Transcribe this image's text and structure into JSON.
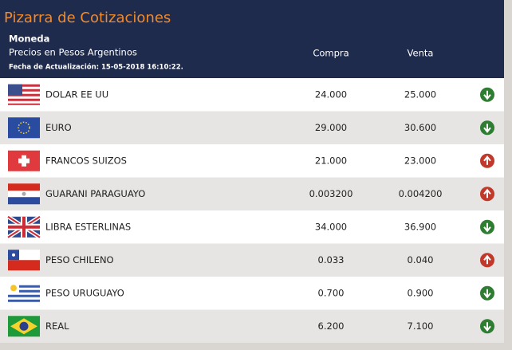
{
  "header": {
    "title": "Pizarra de Cotizaciones",
    "column_currency": "Moneda",
    "subtitle": "Precios en Pesos Argentinos",
    "updated": "Fecha de Actualización: 15-05-2018 16:10:22.",
    "column_buy": "Compra",
    "column_sell": "Venta"
  },
  "table": {
    "rows": [
      {
        "currency": "DOLAR EE UU",
        "buy": "24.000",
        "sell": "25.000",
        "trend": "down"
      },
      {
        "currency": "EURO",
        "buy": "29.000",
        "sell": "30.600",
        "trend": "down"
      },
      {
        "currency": "FRANCOS SUIZOS",
        "buy": "21.000",
        "sell": "23.000",
        "trend": "up"
      },
      {
        "currency": "GUARANI PARAGUAYO",
        "buy": "0.003200",
        "sell": "0.004200",
        "trend": "up"
      },
      {
        "currency": "LIBRA ESTERLINAS",
        "buy": "34.000",
        "sell": "36.900",
        "trend": "down"
      },
      {
        "currency": "PESO CHILENO",
        "buy": "0.033",
        "sell": "0.040",
        "trend": "up"
      },
      {
        "currency": "PESO URUGUAYO",
        "buy": "0.700",
        "sell": "0.900",
        "trend": "down"
      },
      {
        "currency": "REAL",
        "buy": "6.200",
        "sell": "7.100",
        "trend": "down"
      }
    ]
  }
}
